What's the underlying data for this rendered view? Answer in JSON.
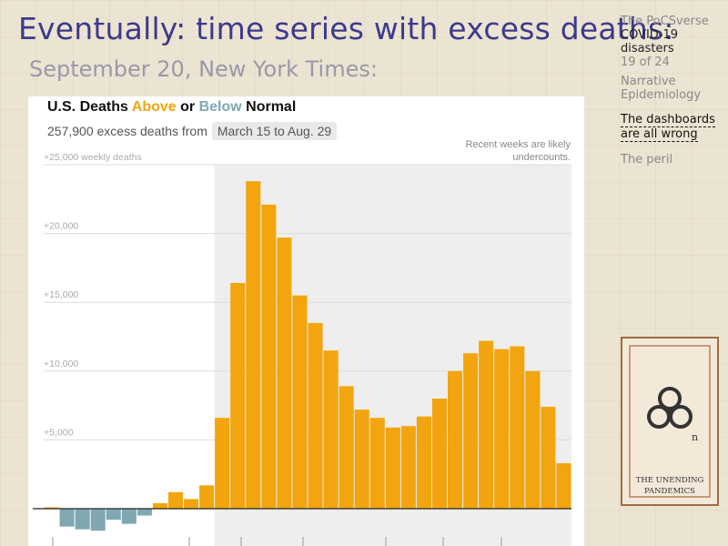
{
  "slide": {
    "title": "Eventually: time series with excess deaths:",
    "subtitle": "September 20, New York Times:"
  },
  "sidebar": {
    "course": "The PoCSverse",
    "topic_line1": "COVID-19",
    "topic_line2": "disasters",
    "page": "19 of 24",
    "sections": [
      {
        "label": "Narrative",
        "label2": "Epidemiology",
        "current": false
      },
      {
        "label": "The dashboards",
        "label2": "are all wrong",
        "current": true
      },
      {
        "label": "The peril",
        "label2": "",
        "current": false
      }
    ]
  },
  "card": {
    "caption_line1": "THE UNENDING",
    "caption_line2": "PANDEMICS",
    "superscript": "n",
    "symbol": "biohazard-icon"
  },
  "chart_data": {
    "type": "bar",
    "title_parts": {
      "pre": "U.S. Deaths ",
      "above": "Above",
      "mid": " or ",
      "below": "Below",
      "post": " Normal"
    },
    "subtitle": "257,900 excess deaths from",
    "range_label": "March 15 to Aug. 29",
    "note_line1": "Recent weeks are likely",
    "note_line2": "undercounts.",
    "ylabel": "+25,000 weekly deaths",
    "yticks": [
      {
        "value": 20000,
        "label": "+20,000"
      },
      {
        "value": 15000,
        "label": "+15,000"
      },
      {
        "value": 10000,
        "label": "+10,000"
      },
      {
        "value": 5000,
        "label": "+5,000"
      }
    ],
    "ylim": [
      -2500,
      25000
    ],
    "highlight_start_index": 11,
    "values": [
      100,
      -1300,
      -1500,
      -1600,
      -800,
      -1100,
      -500,
      400,
      1200,
      700,
      1700,
      6600,
      16400,
      23800,
      22100,
      19700,
      15500,
      13500,
      11500,
      8900,
      7200,
      6600,
      5900,
      6000,
      6700,
      8000,
      10000,
      11300,
      12200,
      11600,
      11800,
      10000,
      7400,
      3300
    ],
    "colors": {
      "above": "#f2a50e",
      "below": "#7fa8b3",
      "shade": "#eeeeee",
      "grid": "#dcdcdc"
    }
  }
}
